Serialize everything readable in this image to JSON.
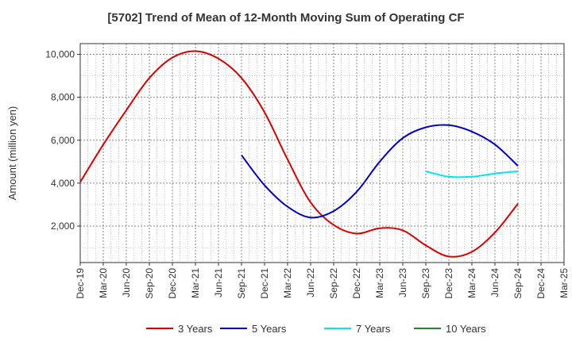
{
  "chart_data": {
    "type": "line",
    "title": "[5702]  Trend of Mean of 12-Month Moving Sum of Operating CF",
    "xlabel": "",
    "ylabel": "Amount (million yen)",
    "x_ticks": [
      "Dec-19",
      "Mar-20",
      "Jun-20",
      "Sep-20",
      "Dec-20",
      "Mar-21",
      "Jun-21",
      "Sep-21",
      "Dec-21",
      "Mar-22",
      "Jun-22",
      "Sep-22",
      "Dec-22",
      "Mar-23",
      "Jun-23",
      "Sep-23",
      "Dec-23",
      "Mar-24",
      "Jun-24",
      "Sep-24",
      "Dec-24",
      "Mar-25"
    ],
    "y_ticks": [
      2000,
      4000,
      6000,
      8000,
      10000
    ],
    "y_tick_labels": [
      "2,000",
      "4,000",
      "6,000",
      "8,000",
      "10,000"
    ],
    "ylim": [
      300,
      10500
    ],
    "grid": true,
    "legend_position": "bottom",
    "series": [
      {
        "name": "3 Years",
        "color": "#dd0000",
        "x": [
          "Dec-19",
          "Mar-20",
          "Jun-20",
          "Sep-20",
          "Dec-20",
          "Mar-21",
          "Jun-21",
          "Sep-21",
          "Dec-21",
          "Mar-22",
          "Jun-22",
          "Sep-22",
          "Dec-22",
          "Mar-23",
          "Jun-23",
          "Sep-23",
          "Dec-23",
          "Mar-24",
          "Jun-24",
          "Sep-24"
        ],
        "values": [
          4050,
          5800,
          7400,
          8900,
          9850,
          10150,
          9800,
          8900,
          7300,
          5100,
          3100,
          2050,
          1650,
          1900,
          1800,
          1100,
          580,
          800,
          1700,
          3050
        ]
      },
      {
        "name": "5 Years",
        "color": "#0000cc",
        "x": [
          "Sep-21",
          "Dec-21",
          "Mar-22",
          "Jun-22",
          "Sep-22",
          "Dec-22",
          "Mar-23",
          "Jun-23",
          "Sep-23",
          "Dec-23",
          "Mar-24",
          "Jun-24",
          "Sep-24"
        ],
        "values": [
          5300,
          3900,
          2900,
          2400,
          2700,
          3600,
          5000,
          6100,
          6600,
          6700,
          6400,
          5800,
          4800
        ]
      },
      {
        "name": "7 Years",
        "color": "#00e5ee",
        "x": [
          "Sep-23",
          "Dec-23",
          "Mar-24",
          "Jun-24",
          "Sep-24"
        ],
        "values": [
          4550,
          4300,
          4300,
          4450,
          4550
        ]
      },
      {
        "name": "10 Years",
        "color": "#228b22",
        "x": [],
        "values": []
      }
    ]
  }
}
